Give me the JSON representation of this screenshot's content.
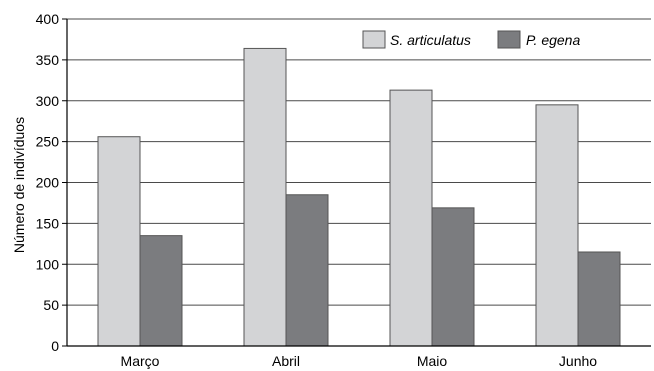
{
  "chart_data": {
    "type": "bar",
    "title": "",
    "xlabel": "",
    "ylabel": "Número de indivíduos",
    "ylim": [
      0,
      400
    ],
    "yticks": [
      0,
      50,
      100,
      150,
      200,
      250,
      300,
      350,
      400
    ],
    "grid": true,
    "legend_position": "top-right",
    "categories": [
      "Março",
      "Abril",
      "Maio",
      "Junho"
    ],
    "series": [
      {
        "name": "S. articulatus",
        "values": [
          256,
          364,
          313,
          295
        ],
        "color": "#d3d4d6",
        "stroke": "#555555"
      },
      {
        "name": "P. egena",
        "values": [
          135,
          185,
          169,
          115
        ],
        "color": "#7b7c7f",
        "stroke": "#555555"
      }
    ]
  }
}
